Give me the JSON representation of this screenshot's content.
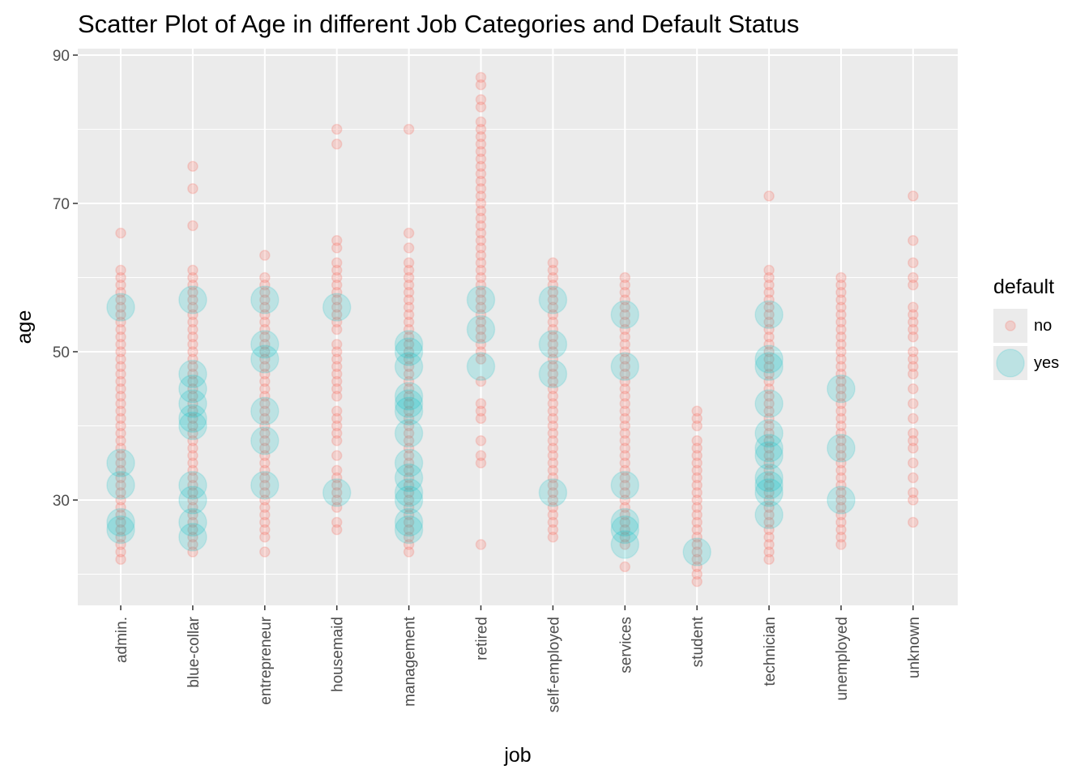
{
  "chart_data": {
    "type": "scatter",
    "title": "Scatter Plot of Age in different Job Categories and Default Status",
    "xlabel": "job",
    "ylabel": "age",
    "ylim": [
      15,
      93
    ],
    "y_ticks": [
      30,
      50,
      70,
      90
    ],
    "categories": [
      "admin.",
      "blue-collar",
      "entrepreneur",
      "housemaid",
      "management",
      "retired",
      "self-employed",
      "services",
      "student",
      "technician",
      "unemployed",
      "unknown"
    ],
    "grid": true,
    "legend": {
      "title": "default",
      "placement": "right",
      "entries": [
        {
          "label": "no",
          "color": "#F8766D"
        },
        {
          "label": "yes",
          "color": "#00BFC4"
        }
      ]
    },
    "series": [
      {
        "name": "no",
        "color": "#F8766D",
        "points": {
          "admin.": [
            22,
            23,
            24,
            25,
            26,
            27,
            28,
            29,
            30,
            31,
            32,
            33,
            34,
            35,
            36,
            37,
            38,
            39,
            40,
            41,
            42,
            43,
            44,
            45,
            46,
            47,
            48,
            49,
            50,
            51,
            52,
            53,
            54,
            55,
            56,
            57,
            58,
            59,
            60,
            61,
            66
          ],
          "blue-collar": [
            23,
            24,
            25,
            26,
            27,
            28,
            29,
            30,
            31,
            32,
            33,
            34,
            35,
            36,
            37,
            38,
            39,
            40,
            41,
            42,
            43,
            44,
            45,
            46,
            47,
            48,
            49,
            50,
            51,
            52,
            53,
            54,
            55,
            56,
            57,
            58,
            59,
            60,
            61,
            67,
            72,
            75
          ],
          "entrepreneur": [
            23,
            25,
            26,
            27,
            28,
            29,
            30,
            31,
            32,
            33,
            34,
            35,
            36,
            37,
            38,
            39,
            40,
            41,
            42,
            43,
            44,
            45,
            46,
            47,
            48,
            49,
            50,
            51,
            52,
            53,
            54,
            55,
            56,
            57,
            58,
            59,
            60,
            63
          ],
          "housemaid": [
            26,
            27,
            29,
            30,
            31,
            32,
            33,
            34,
            36,
            38,
            39,
            40,
            41,
            42,
            44,
            45,
            46,
            47,
            48,
            49,
            50,
            51,
            53,
            54,
            55,
            56,
            57,
            58,
            59,
            60,
            61,
            62,
            64,
            65,
            78,
            80
          ],
          "management": [
            23,
            24,
            25,
            26,
            27,
            28,
            29,
            30,
            31,
            32,
            33,
            34,
            35,
            36,
            37,
            38,
            39,
            40,
            41,
            42,
            43,
            44,
            45,
            46,
            47,
            48,
            49,
            50,
            51,
            52,
            53,
            54,
            55,
            56,
            57,
            58,
            59,
            60,
            61,
            62,
            64,
            66,
            80
          ],
          "retired": [
            24,
            35,
            36,
            38,
            41,
            42,
            43,
            46,
            49,
            50,
            51,
            52,
            53,
            54,
            55,
            56,
            57,
            58,
            59,
            60,
            61,
            62,
            63,
            64,
            65,
            66,
            67,
            68,
            69,
            70,
            71,
            72,
            73,
            74,
            75,
            76,
            77,
            78,
            79,
            80,
            81,
            83,
            84,
            86,
            87
          ],
          "self-employed": [
            25,
            26,
            27,
            28,
            29,
            30,
            31,
            32,
            33,
            34,
            35,
            36,
            37,
            38,
            39,
            40,
            41,
            42,
            43,
            44,
            45,
            46,
            47,
            48,
            49,
            50,
            51,
            52,
            53,
            54,
            55,
            56,
            57,
            58,
            59,
            60,
            61,
            62
          ],
          "services": [
            21,
            24,
            25,
            26,
            27,
            28,
            29,
            30,
            31,
            32,
            33,
            34,
            35,
            36,
            37,
            38,
            39,
            40,
            41,
            42,
            43,
            44,
            45,
            46,
            47,
            48,
            49,
            50,
            51,
            52,
            53,
            54,
            55,
            56,
            57,
            58,
            59,
            60
          ],
          "student": [
            19,
            20,
            21,
            22,
            23,
            24,
            25,
            26,
            27,
            28,
            29,
            30,
            31,
            32,
            33,
            34,
            35,
            36,
            37,
            38,
            40,
            41,
            42
          ],
          "technician": [
            22,
            23,
            24,
            25,
            26,
            27,
            28,
            29,
            30,
            31,
            32,
            33,
            34,
            35,
            36,
            37,
            38,
            39,
            40,
            41,
            42,
            43,
            44,
            45,
            46,
            47,
            48,
            49,
            50,
            51,
            52,
            53,
            54,
            55,
            56,
            57,
            58,
            59,
            60,
            61,
            71
          ],
          "unemployed": [
            24,
            25,
            26,
            27,
            28,
            29,
            30,
            31,
            32,
            33,
            34,
            35,
            36,
            37,
            38,
            39,
            40,
            41,
            42,
            43,
            44,
            45,
            46,
            47,
            48,
            49,
            50,
            51,
            52,
            53,
            54,
            55,
            56,
            57,
            58,
            59,
            60
          ],
          "unknown": [
            27,
            30,
            31,
            33,
            35,
            37,
            38,
            39,
            41,
            43,
            45,
            47,
            48,
            49,
            50,
            52,
            53,
            54,
            55,
            56,
            59,
            60,
            62,
            65,
            71
          ]
        }
      },
      {
        "name": "yes",
        "color": "#00BFC4",
        "points": {
          "admin.": [
            26,
            27,
            32,
            35,
            56
          ],
          "blue-collar": [
            25,
            27,
            30,
            32,
            40,
            41,
            43,
            45,
            47,
            57
          ],
          "entrepreneur": [
            32,
            38,
            42,
            49,
            51,
            57
          ],
          "housemaid": [
            31,
            56
          ],
          "management": [
            26,
            27,
            30,
            31,
            33,
            35,
            39,
            42,
            43,
            44,
            48,
            50,
            51
          ],
          "retired": [
            48,
            53,
            57
          ],
          "self-employed": [
            31,
            47,
            51,
            57
          ],
          "services": [
            24,
            26,
            27,
            32,
            48,
            55
          ],
          "student": [
            23
          ],
          "technician": [
            28,
            31,
            32,
            33,
            36,
            37,
            39,
            43,
            48,
            49,
            55
          ],
          "unemployed": [
            30,
            37,
            45
          ],
          "unknown": []
        }
      }
    ]
  }
}
